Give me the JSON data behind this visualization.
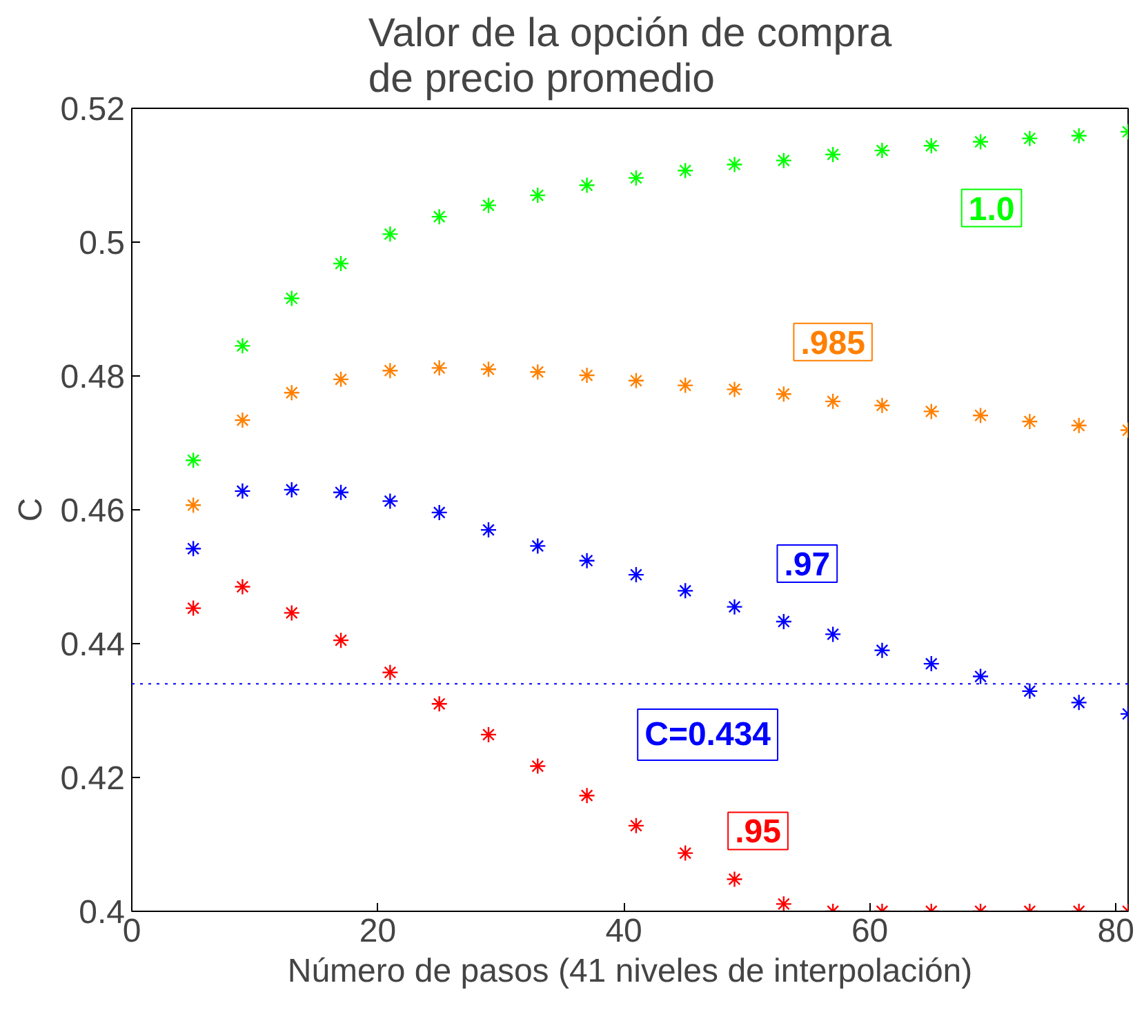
{
  "chart_data": {
    "type": "scatter",
    "title": "Valor de la opción de compra\nde precio promedio",
    "xlabel": "Número de pasos (41 niveles de interpolación)",
    "ylabel": "C",
    "x": [
      5,
      9,
      13,
      17,
      21,
      25,
      29,
      33,
      37,
      41,
      45,
      49,
      53,
      57,
      61,
      65,
      69,
      73,
      77,
      81
    ],
    "series": [
      {
        "name": "1.0",
        "color": "#00ff00",
        "values": [
          0.4674,
          0.4845,
          0.4916,
          0.4968,
          0.5012,
          0.5038,
          0.5055,
          0.507,
          0.5085,
          0.5096,
          0.5107,
          0.5116,
          0.5122,
          0.5131,
          0.5137,
          0.5144,
          0.515,
          0.5155,
          0.5159,
          0.5165
        ]
      },
      {
        "name": ".985",
        "color": "#ff8000",
        "values": [
          0.4607,
          0.4734,
          0.4775,
          0.4795,
          0.4808,
          0.4812,
          0.481,
          0.4806,
          0.4801,
          0.4793,
          0.4786,
          0.478,
          0.4773,
          0.4762,
          0.4756,
          0.4747,
          0.4741,
          0.4732,
          0.4726,
          0.4719
        ]
      },
      {
        "name": ".97",
        "color": "#0000ff",
        "values": [
          0.4542,
          0.4628,
          0.463,
          0.4626,
          0.4613,
          0.4596,
          0.457,
          0.4546,
          0.4524,
          0.4503,
          0.4479,
          0.4455,
          0.4433,
          0.4414,
          0.439,
          0.437,
          0.4351,
          0.4329,
          0.4312,
          0.4295
        ]
      },
      {
        "name": ".95",
        "color": "#ff0000",
        "values": [
          0.4453,
          0.4485,
          0.4446,
          0.4405,
          0.4357,
          0.431,
          0.4264,
          0.4217,
          0.4173,
          0.4128,
          0.4087,
          0.4048,
          0.4011,
          0.4,
          0.4,
          0.4,
          0.4,
          0.4,
          0.4,
          0.4
        ]
      }
    ],
    "ref_lines": [
      {
        "axis": "y",
        "value": 0.434,
        "label": "C=0.434",
        "color": "#0000ff",
        "line_style": "dotted"
      }
    ],
    "xlim": [
      0,
      81
    ],
    "ylim": [
      0.4,
      0.52
    ],
    "xticks": [
      0,
      20,
      40,
      60,
      80
    ],
    "yticks": [
      0.4,
      0.42,
      0.44,
      0.46,
      0.48,
      0.5,
      0.52
    ],
    "marker": "cross",
    "grid": false
  }
}
